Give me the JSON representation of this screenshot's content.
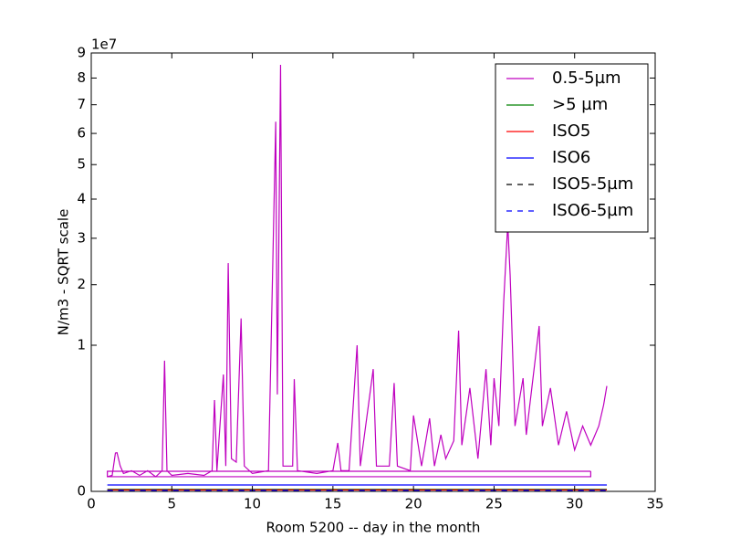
{
  "chart_data": {
    "type": "line",
    "xlabel": "Room 5200 -- day in the month",
    "ylabel": "N/m3 - SQRT scale",
    "y_offset_label": "1e7",
    "yscale": "sqrt",
    "xlim": [
      0,
      35
    ],
    "xticks": [
      0,
      5,
      10,
      15,
      20,
      25,
      30,
      35
    ],
    "ylim": [
      0,
      9
    ],
    "yticks": [
      0,
      1,
      2,
      3,
      4,
      5,
      6,
      7,
      8,
      9
    ],
    "legend": "upper right",
    "series": [
      {
        "name": "0.5-5µm",
        "color": "#bf00bf",
        "dash": false,
        "x": [
          1,
          1.3,
          1.5,
          1.6,
          1.8,
          2,
          2.5,
          3,
          3.5,
          4,
          4.4,
          4.55,
          4.7,
          5,
          6,
          7,
          7.5,
          7.65,
          7.8,
          8.2,
          8.35,
          8.5,
          8.7,
          9,
          9.3,
          9.5,
          10,
          11,
          11.45,
          11.55,
          11.75,
          11.9,
          12.5,
          12.6,
          12.8,
          14,
          15,
          15.3,
          15.5,
          16,
          16.5,
          16.7,
          17.5,
          17.7,
          18.5,
          18.8,
          19,
          19.8,
          20,
          20.5,
          21,
          21.3,
          21.7,
          22,
          22.5,
          22.8,
          23,
          23.5,
          24,
          24.5,
          24.8,
          25,
          25.3,
          25.6,
          25.85,
          26,
          26.3,
          26.8,
          27,
          27.8,
          28,
          28.5,
          29,
          29.5,
          30,
          30.5,
          31,
          31.5,
          31.8,
          32,
          null,
          31,
          1,
          1,
          31,
          31
        ],
        "values": [
          0.01,
          0.012,
          0.069,
          0.07,
          0.03,
          0.015,
          0.02,
          0.012,
          0.02,
          0.01,
          0.02,
          0.8,
          0.02,
          0.012,
          0.015,
          0.012,
          0.02,
          0.39,
          0.02,
          0.64,
          0.03,
          2.44,
          0.05,
          0.04,
          1.4,
          0.03,
          0.015,
          0.02,
          6.4,
          0.44,
          8.52,
          0.03,
          0.03,
          0.59,
          0.02,
          0.015,
          0.02,
          0.11,
          0.02,
          0.02,
          1.0,
          0.03,
          0.7,
          0.03,
          0.03,
          0.55,
          0.03,
          0.02,
          0.27,
          0.03,
          0.25,
          0.03,
          0.15,
          0.05,
          0.12,
          1.21,
          0.1,
          0.5,
          0.05,
          0.7,
          0.1,
          0.6,
          0.2,
          1.69,
          3.35,
          2.18,
          0.2,
          0.6,
          0.15,
          1.28,
          0.2,
          0.5,
          0.1,
          0.3,
          0.08,
          0.2,
          0.1,
          0.2,
          0.35,
          0.52,
          null,
          0.0189,
          0.0189,
          0.0101,
          0.0101,
          0.0189
        ]
      },
      {
        "name": ">5 µm",
        "color": "#008000",
        "dash": false,
        "x": [
          1,
          32
        ],
        "values": [
          0.0002,
          0.0002
        ]
      },
      {
        "name": "ISO5",
        "color": "#ff0000",
        "dash": false,
        "x": [
          1,
          32
        ],
        "values": [
          0.0001,
          0.0001
        ]
      },
      {
        "name": "ISO6",
        "color": "#0000ff",
        "dash": false,
        "x": [
          1,
          32
        ],
        "values": [
          0.0019,
          0.0019
        ]
      },
      {
        "name": "ISO5-5µm",
        "color": "#000000",
        "dash": true,
        "x": [
          1,
          32
        ],
        "values": [
          1e-05,
          1e-05
        ]
      },
      {
        "name": "ISO6-5µm",
        "color": "#0000ff",
        "dash": true,
        "x": [
          1,
          32
        ],
        "values": [
          5e-05,
          5e-05
        ]
      }
    ]
  }
}
